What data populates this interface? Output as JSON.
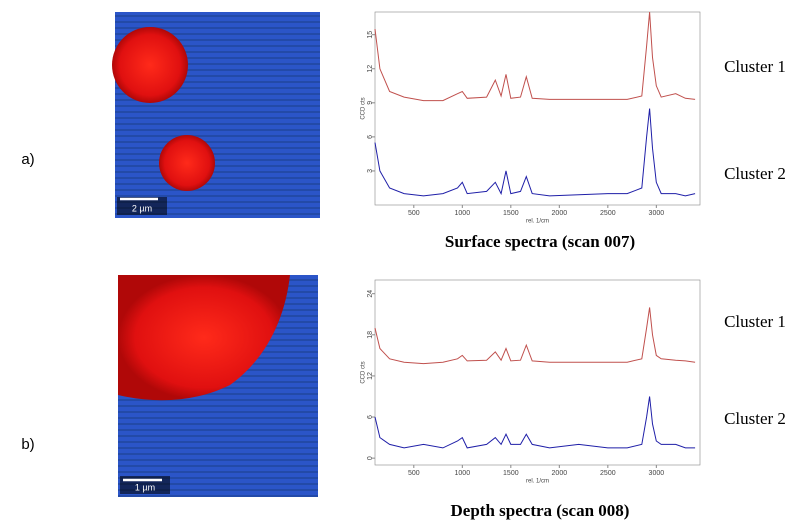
{
  "panels": [
    {
      "label": "a)",
      "scale_bar": "2 µm",
      "caption": "Surface spectra (scan 007)",
      "chart": {
        "type": "line",
        "x_label": "rel. 1/cm",
        "y_label": "CCD cts",
        "xlim": [
          100,
          3450
        ],
        "ylim": [
          0,
          17
        ],
        "xticks": [
          500,
          1000,
          1500,
          2000,
          2500,
          3000
        ],
        "yticks": [
          3,
          6,
          9,
          12,
          15
        ],
        "x": [
          100,
          150,
          250,
          400,
          600,
          800,
          950,
          1000,
          1050,
          1250,
          1340,
          1400,
          1450,
          1500,
          1600,
          1660,
          1720,
          1900,
          2200,
          2500,
          2700,
          2850,
          2900,
          2930,
          2960,
          3000,
          3050,
          3200,
          3300,
          3400
        ],
        "series": [
          {
            "name": "Cluster 1",
            "color": "#c0504d",
            "values": [
              15.5,
              12,
              10,
              9.5,
              9.2,
              9.2,
              9.8,
              10,
              9.4,
              9.5,
              11,
              9.6,
              11.5,
              9.4,
              9.5,
              11.3,
              9.4,
              9.3,
              9.3,
              9.3,
              9.3,
              9.6,
              14,
              17,
              13,
              10.5,
              9.5,
              9.8,
              9.4,
              9.3
            ]
          },
          {
            "name": "Cluster 2",
            "color": "#1f1fa8",
            "values": [
              5.5,
              3,
              1.5,
              1,
              0.8,
              1,
              1.5,
              2,
              1,
              1.2,
              2,
              1,
              3,
              1,
              1.2,
              2.5,
              1,
              0.8,
              0.9,
              1,
              1,
              1.5,
              6,
              8.5,
              5,
              2,
              1,
              1,
              0.8,
              1
            ]
          }
        ]
      }
    },
    {
      "label": "b)",
      "scale_bar": "1 µm",
      "caption": "Depth spectra (scan 008)",
      "chart": {
        "type": "line",
        "x_label": "rel. 1/cm",
        "y_label": "CCD cts",
        "xlim": [
          100,
          3450
        ],
        "ylim": [
          -1,
          26
        ],
        "xticks": [
          500,
          1000,
          1500,
          2000,
          2500,
          3000
        ],
        "yticks": [
          0,
          6,
          12,
          18,
          24
        ],
        "x": [
          100,
          150,
          250,
          400,
          600,
          800,
          950,
          1000,
          1050,
          1250,
          1340,
          1400,
          1450,
          1500,
          1600,
          1660,
          1720,
          1900,
          2200,
          2500,
          2700,
          2850,
          2900,
          2930,
          2960,
          3000,
          3050,
          3200,
          3300,
          3400
        ],
        "series": [
          {
            "name": "Cluster 1",
            "color": "#c0504d",
            "values": [
              19,
              16,
              14.5,
              14,
              13.8,
              14,
              14.5,
              15,
              14.2,
              14.3,
              15.5,
              14.3,
              16,
              14.2,
              14.3,
              16.5,
              14.2,
              14,
              14,
              14,
              14,
              14.5,
              19,
              22,
              18,
              15,
              14.5,
              14.3,
              14.2,
              14
            ]
          },
          {
            "name": "Cluster 2",
            "color": "#1f1fa8",
            "values": [
              6,
              3,
              2,
              1.5,
              2,
              1.5,
              2.5,
              3,
              1.5,
              2,
              3,
              2,
              3.5,
              2,
              2,
              3.5,
              2,
              1.5,
              2,
              1.5,
              1.5,
              2,
              6,
              9,
              5,
              2.5,
              2,
              2,
              1.5,
              1.5
            ]
          }
        ]
      }
    }
  ]
}
